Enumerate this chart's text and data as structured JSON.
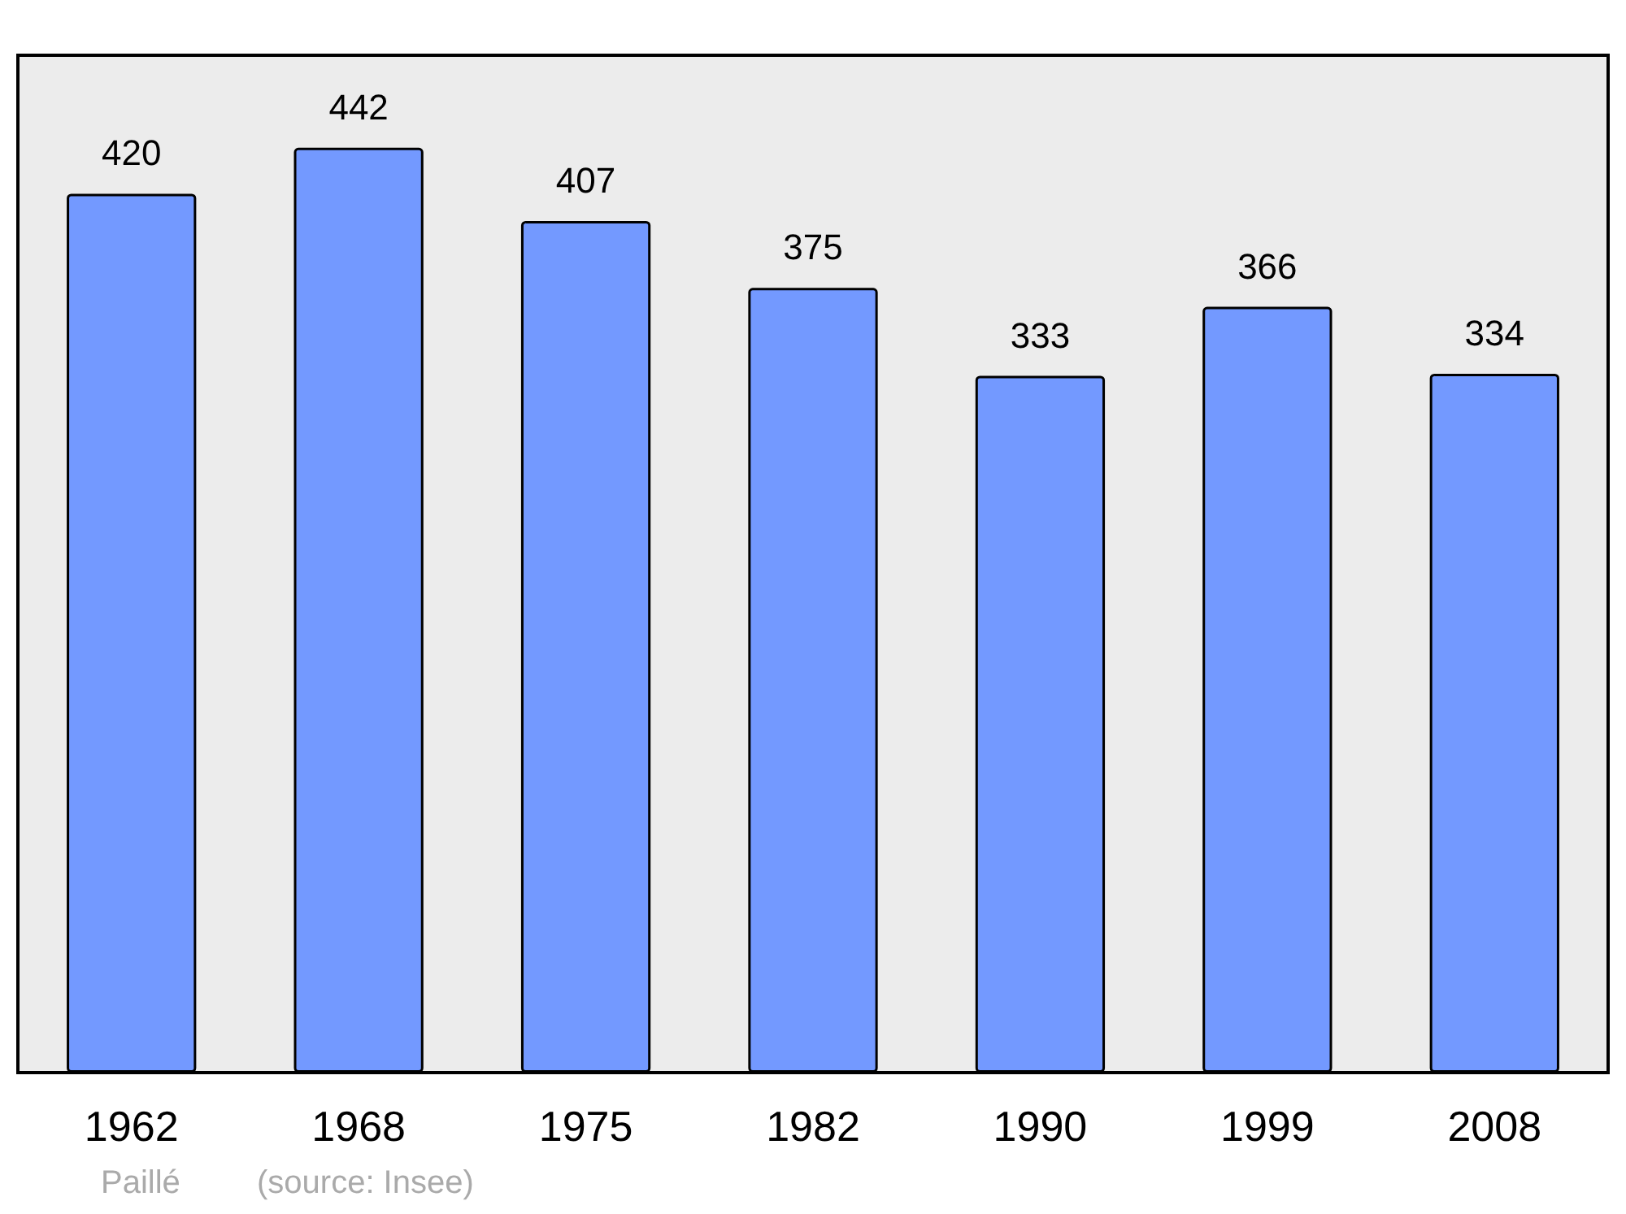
{
  "chart_data": {
    "type": "bar",
    "categories": [
      "1962",
      "1968",
      "1975",
      "1982",
      "1990",
      "1999",
      "2008"
    ],
    "values": [
      420,
      442,
      407,
      375,
      333,
      366,
      334
    ],
    "color": "#7399ff",
    "data_labels": true,
    "annotations": [
      "Paillé",
      "(source: Insee)"
    ]
  }
}
